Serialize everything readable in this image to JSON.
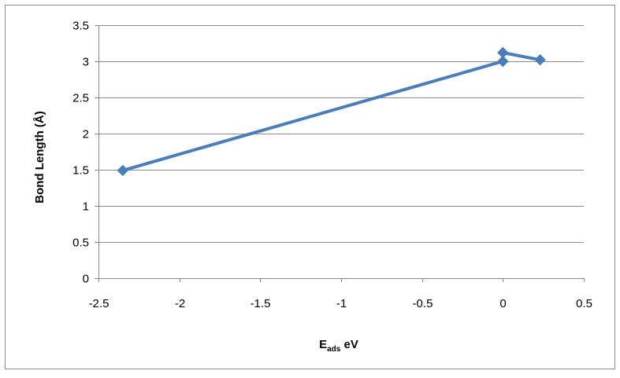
{
  "chart_data": {
    "type": "scatter",
    "title": "",
    "xlabel": "E",
    "xlabel_subscript": "ads",
    "xlabel_suffix": " eV",
    "ylabel": "Bond Length (Å)",
    "xlim": [
      -2.5,
      0.5
    ],
    "ylim": [
      0,
      3.5
    ],
    "x_ticks": [
      -2.5,
      -2,
      -1.5,
      -1,
      -0.5,
      0,
      0.5
    ],
    "x_tick_labels": [
      "-2.5",
      "-2",
      "-1.5",
      "-1",
      "-0.5",
      "0",
      "0.5"
    ],
    "y_ticks": [
      0,
      0.5,
      1,
      1.5,
      2,
      2.5,
      3,
      3.5
    ],
    "y_tick_labels": [
      "0",
      "0.5",
      "1",
      "1.5",
      "2",
      "2.5",
      "3",
      "3.5"
    ],
    "grid": "horizontal",
    "legend": "none",
    "series": [
      {
        "x": [
          -2.35,
          0.0,
          0.0,
          0.23
        ],
        "y": [
          1.49,
          3.0,
          3.12,
          3.02
        ],
        "color": "#4a7ebb",
        "marker": "diamond",
        "line": true
      }
    ]
  }
}
